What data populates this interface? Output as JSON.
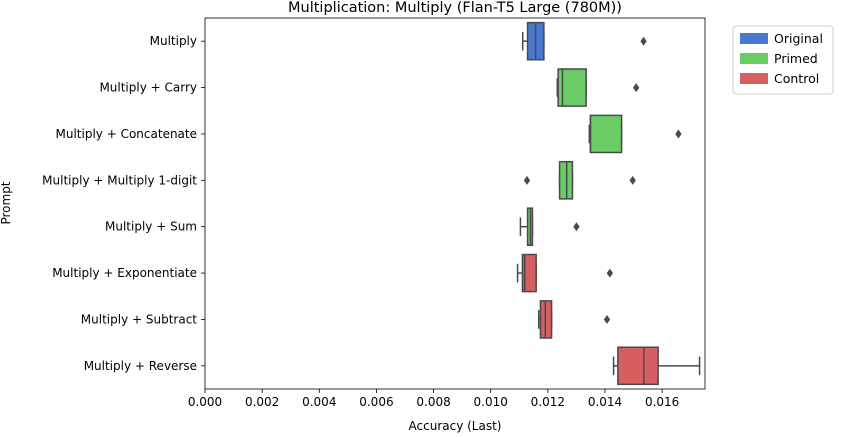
{
  "chart_data": {
    "type": "boxplot",
    "orientation": "horizontal",
    "title": "Multiplication: Multiply (Flan-T5 Large (780M))",
    "xlabel": "Accuracy (Last)",
    "ylabel": "Prompt",
    "xlim": [
      0.0,
      0.0175
    ],
    "xticks": [
      "0.000",
      "0.002",
      "0.004",
      "0.006",
      "0.008",
      "0.010",
      "0.012",
      "0.014",
      "0.016"
    ],
    "grid": false,
    "legend_position": "outside-top-right",
    "legend": [
      {
        "name": "Original",
        "color": "#4878d0"
      },
      {
        "name": "Primed",
        "color": "#6acc64"
      },
      {
        "name": "Control",
        "color": "#d65f5f"
      }
    ],
    "categories": [
      "Multiply",
      "Multiply + Carry",
      "Multiply + Concatenate",
      "Multiply + Multiply 1-digit",
      "Multiply + Sum",
      "Multiply + Exponentiate",
      "Multiply + Subtract",
      "Multiply + Reverse"
    ],
    "boxes": [
      {
        "group": "Original",
        "whisker_low": 0.01112,
        "q1": 0.01129,
        "median": 0.01157,
        "q3": 0.01186,
        "whisker_high": 0.01186,
        "outliers": [
          0.01535
        ]
      },
      {
        "group": "Primed",
        "whisker_low": 0.01233,
        "q1": 0.01236,
        "median": 0.01251,
        "q3": 0.01334,
        "whisker_high": 0.01334,
        "outliers": [
          0.01509
        ]
      },
      {
        "group": "Primed",
        "whisker_low": 0.01345,
        "q1": 0.01349,
        "median": 0.01349,
        "q3": 0.01458,
        "whisker_high": 0.01458,
        "outliers": [
          0.01657
        ]
      },
      {
        "group": "Primed",
        "whisker_low": 0.01241,
        "q1": 0.01241,
        "median": 0.01266,
        "q3": 0.01286,
        "whisker_high": 0.01286,
        "outliers": [
          0.01127,
          0.01497
        ]
      },
      {
        "group": "Primed",
        "whisker_low": 0.01104,
        "q1": 0.01129,
        "median": 0.01139,
        "q3": 0.01146,
        "whisker_high": 0.01146,
        "outliers": [
          0.013
        ]
      },
      {
        "group": "Control",
        "whisker_low": 0.01094,
        "q1": 0.01111,
        "median": 0.01119,
        "q3": 0.01159,
        "whisker_high": 0.01159,
        "outliers": [
          0.01417
        ]
      },
      {
        "group": "Control",
        "whisker_low": 0.01168,
        "q1": 0.01174,
        "median": 0.01191,
        "q3": 0.01213,
        "whisker_high": 0.01213,
        "outliers": [
          0.01407
        ]
      },
      {
        "group": "Control",
        "whisker_low": 0.0143,
        "q1": 0.01445,
        "median": 0.01536,
        "q3": 0.01586,
        "whisker_high": 0.01731,
        "outliers": []
      }
    ]
  }
}
